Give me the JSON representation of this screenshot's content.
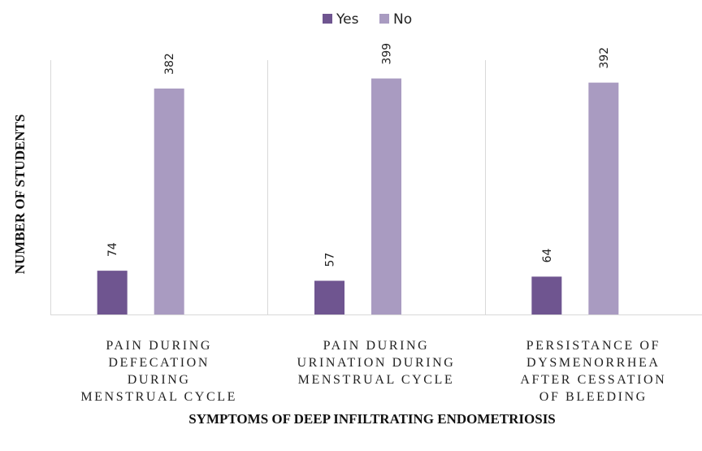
{
  "chart_data": {
    "type": "bar",
    "title": "",
    "xlabel": "SYMPTOMS OF DEEP INFILTRATING ENDOMETRIOSIS",
    "ylabel": "NUMBER OF STUDENTS",
    "categories": [
      [
        "PAIN DURING",
        "DEFECATION",
        "DURING",
        "MENSTRUAL CYCLE"
      ],
      [
        "PAIN DURING",
        "URINATION DURING",
        "MENSTRUAL CYCLE"
      ],
      [
        "PERSISTANCE OF",
        "DYSMENORRHEA",
        "AFTER CESSATION",
        "OF BLEEDING"
      ]
    ],
    "series": [
      {
        "name": "Yes",
        "color": "#6f5590",
        "values": [
          74,
          57,
          64
        ]
      },
      {
        "name": "No",
        "color": "#a99bc1",
        "values": [
          382,
          399,
          392
        ]
      }
    ],
    "ylim": [
      0,
      430
    ],
    "legend_position": "top",
    "grid": false,
    "data_labels": true
  }
}
